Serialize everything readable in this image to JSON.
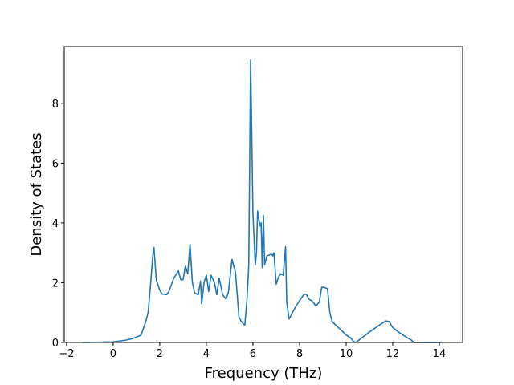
{
  "chart_data": {
    "type": "line",
    "title": "",
    "xlabel": "Frequency (THz)",
    "ylabel": "Density of States",
    "xlim": [
      -2.1,
      15.0
    ],
    "ylim": [
      0,
      9.9
    ],
    "xticks": [
      -2,
      0,
      2,
      4,
      6,
      8,
      10,
      12,
      14
    ],
    "yticks": [
      0,
      2,
      4,
      6,
      8
    ],
    "grid": false,
    "series": [
      {
        "color": "#1f77b4",
        "x": [
          -1.3,
          0.0,
          0.5,
          0.8,
          1.0,
          1.2,
          1.4,
          1.5,
          1.6,
          1.7,
          1.75,
          1.85,
          2.0,
          2.1,
          2.3,
          2.4,
          2.6,
          2.8,
          2.9,
          3.0,
          3.1,
          3.2,
          3.3,
          3.4,
          3.5,
          3.65,
          3.75,
          3.8,
          3.9,
          4.0,
          4.1,
          4.2,
          4.35,
          4.45,
          4.55,
          4.7,
          4.85,
          4.95,
          5.1,
          5.25,
          5.4,
          5.5,
          5.65,
          5.75,
          5.82,
          5.9,
          6.0,
          6.1,
          6.15,
          6.2,
          6.3,
          6.35,
          6.4,
          6.45,
          6.5,
          6.6,
          6.8,
          6.85,
          6.9,
          7.0,
          7.1,
          7.2,
          7.3,
          7.4,
          7.45,
          7.55,
          7.8,
          8.0,
          8.2,
          8.3,
          8.4,
          8.55,
          8.7,
          8.85,
          8.95,
          9.05,
          9.2,
          9.3,
          9.4,
          9.5,
          9.8,
          10.0,
          10.2,
          10.3,
          10.4,
          10.5,
          11.0,
          11.5,
          11.7,
          11.85,
          12.0,
          12.3,
          12.6,
          12.8,
          12.9,
          14.1
        ],
        "y": [
          0.0,
          0.02,
          0.07,
          0.12,
          0.18,
          0.25,
          0.7,
          1.0,
          1.9,
          2.9,
          3.18,
          2.1,
          1.75,
          1.62,
          1.6,
          1.72,
          2.15,
          2.4,
          2.1,
          2.1,
          2.55,
          2.3,
          3.28,
          2.0,
          1.65,
          1.6,
          2.05,
          1.3,
          2.0,
          2.25,
          1.7,
          2.25,
          2.0,
          1.6,
          2.15,
          1.6,
          1.45,
          1.7,
          2.78,
          2.35,
          0.85,
          0.7,
          0.58,
          1.5,
          2.6,
          9.45,
          4.3,
          2.6,
          3.0,
          4.4,
          3.9,
          4.0,
          2.5,
          4.25,
          2.6,
          2.9,
          2.95,
          2.9,
          3.0,
          1.95,
          2.2,
          2.3,
          2.25,
          3.2,
          1.35,
          0.78,
          1.15,
          1.4,
          1.62,
          1.6,
          1.45,
          1.38,
          1.22,
          1.35,
          1.85,
          1.85,
          1.8,
          1.0,
          0.7,
          0.62,
          0.4,
          0.25,
          0.15,
          0.05,
          0.0,
          0.05,
          0.35,
          0.62,
          0.72,
          0.7,
          0.5,
          0.32,
          0.17,
          0.08,
          0.0,
          0.0
        ]
      }
    ]
  }
}
